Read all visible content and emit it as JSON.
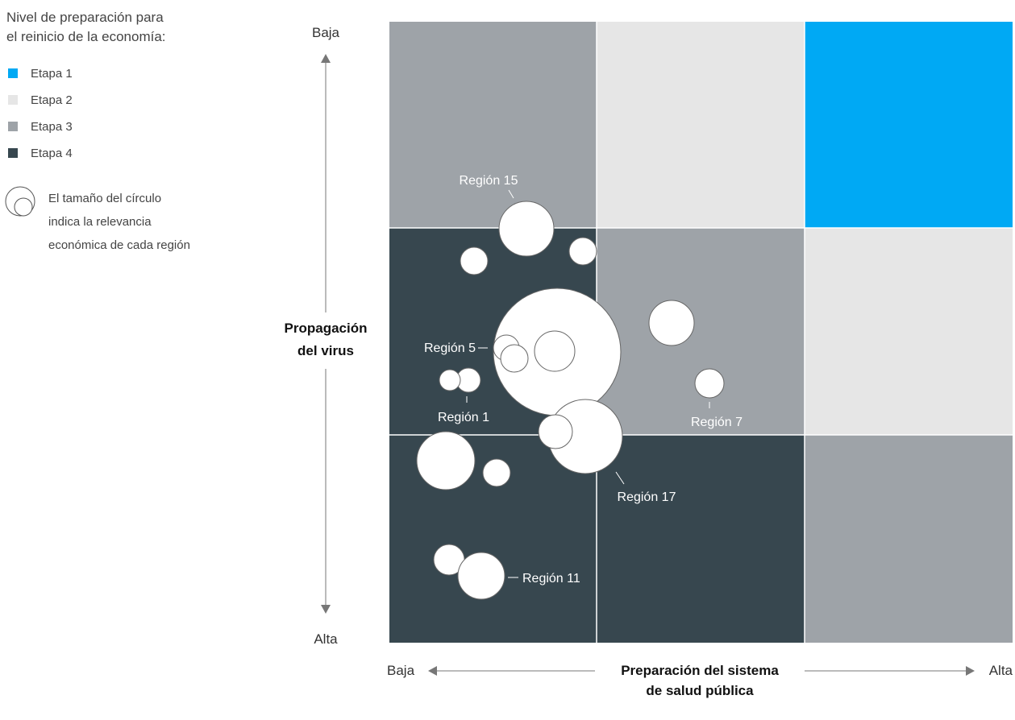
{
  "chart_data": {
    "type": "bubble-matrix",
    "legend": {
      "title_lines": [
        "Nivel de preparación para",
        "el reinicio de la economía:"
      ],
      "items": [
        {
          "label": "Etapa 1",
          "color": "#00a9f4"
        },
        {
          "label": "Etapa 2",
          "color": "#e6e6e6"
        },
        {
          "label": "Etapa 3",
          "color": "#9ea3a8"
        },
        {
          "label": "Etapa 4",
          "color": "#37474f"
        }
      ],
      "size_note_lines": [
        "El tamaño del círculo",
        "indica la relevancia",
        "económica de cada región"
      ]
    },
    "y_axis": {
      "title_lines": [
        "Propagación",
        "del virus"
      ],
      "top_label": "Baja",
      "bottom_label": "Alta"
    },
    "x_axis": {
      "title_lines": [
        "Preparación del sistema",
        "de salud pública"
      ],
      "left_label": "Baja",
      "right_label": "Alta"
    },
    "grid": [
      [
        "Etapa 3",
        "Etapa 2",
        "Etapa 1"
      ],
      [
        "Etapa 4",
        "Etapa 3",
        "Etapa 2"
      ],
      [
        "Etapa 4",
        "Etapa 4",
        "Etapa 3"
      ]
    ],
    "regions": [
      {
        "label": "Región 15"
      },
      {
        "label": "Región 5"
      },
      {
        "label": "Región 1"
      },
      {
        "label": "Región 7"
      },
      {
        "label": "Región 17"
      },
      {
        "label": "Región 11"
      }
    ]
  }
}
